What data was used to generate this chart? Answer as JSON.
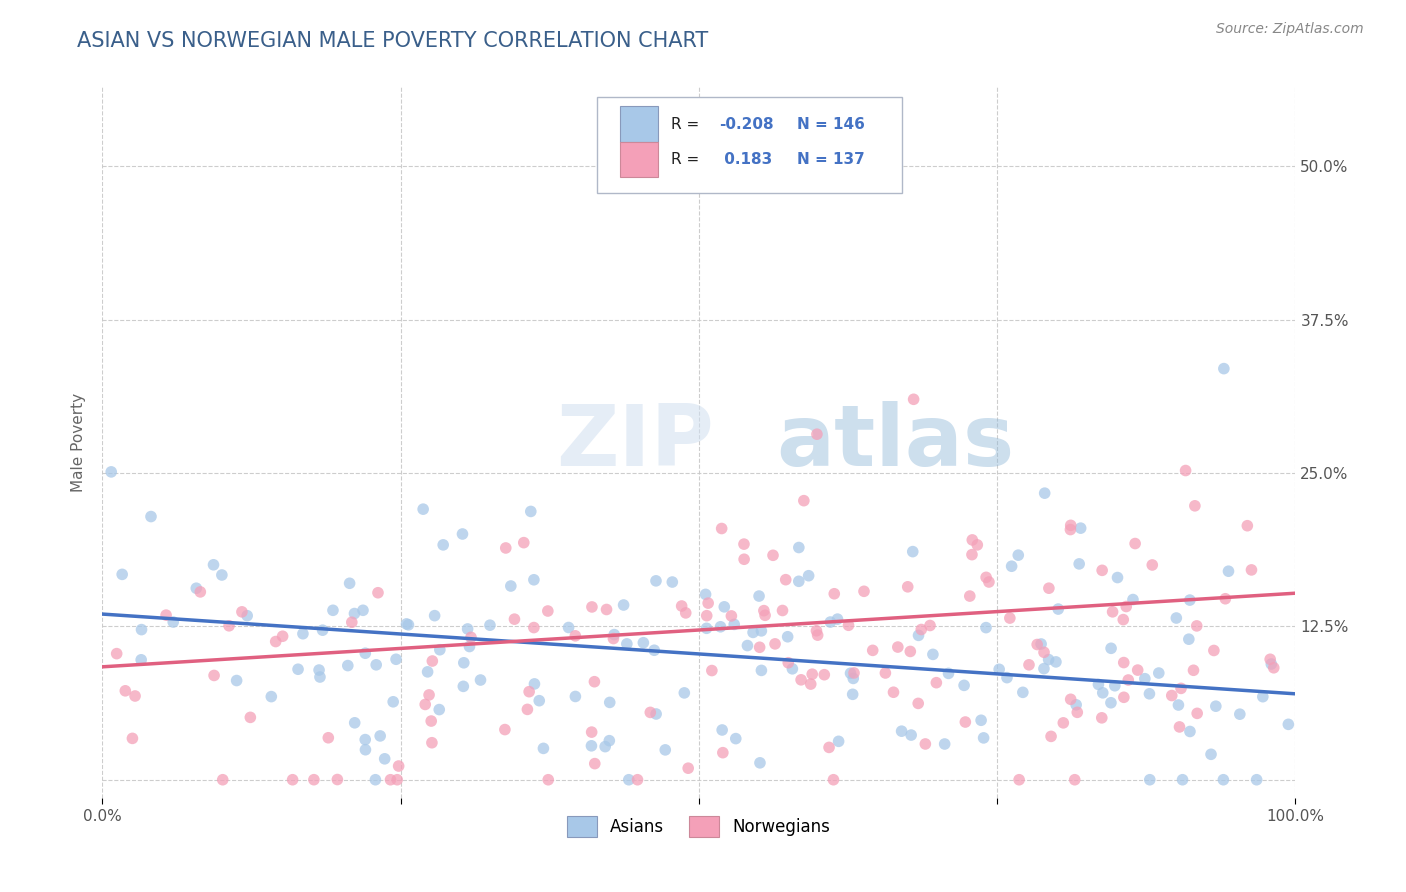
{
  "title": "ASIAN VS NORWEGIAN MALE POVERTY CORRELATION CHART",
  "source": "Source: ZipAtlas.com",
  "ylabel": "Male Poverty",
  "xlim": [
    0.0,
    1.0
  ],
  "ylim": [
    -0.015,
    0.565
  ],
  "xticks": [
    0.0,
    0.25,
    0.5,
    0.75,
    1.0
  ],
  "xticklabels": [
    "0.0%",
    "",
    "",
    "",
    "100.0%"
  ],
  "yticks": [
    0.0,
    0.125,
    0.25,
    0.375,
    0.5
  ],
  "yticklabels_right": [
    "",
    "12.5%",
    "25.0%",
    "37.5%",
    "50.0%"
  ],
  "asian_R": -0.208,
  "asian_N": 146,
  "norwegian_R": 0.183,
  "norwegian_N": 137,
  "asian_color": "#a8c8e8",
  "norwegian_color": "#f4a0b8",
  "asian_line_color": "#4472c4",
  "norwegian_line_color": "#e06080",
  "watermark_zip": "ZIP",
  "watermark_atlas": "atlas",
  "legend_labels": [
    "Asians",
    "Norwegians"
  ],
  "background_color": "#ffffff",
  "grid_color": "#c8c8c8",
  "title_color": "#3a5f8a",
  "axis_label_color": "#666666",
  "tick_color": "#555555",
  "legend_R_color": "#4472c4",
  "legend_text_color": "#222222"
}
